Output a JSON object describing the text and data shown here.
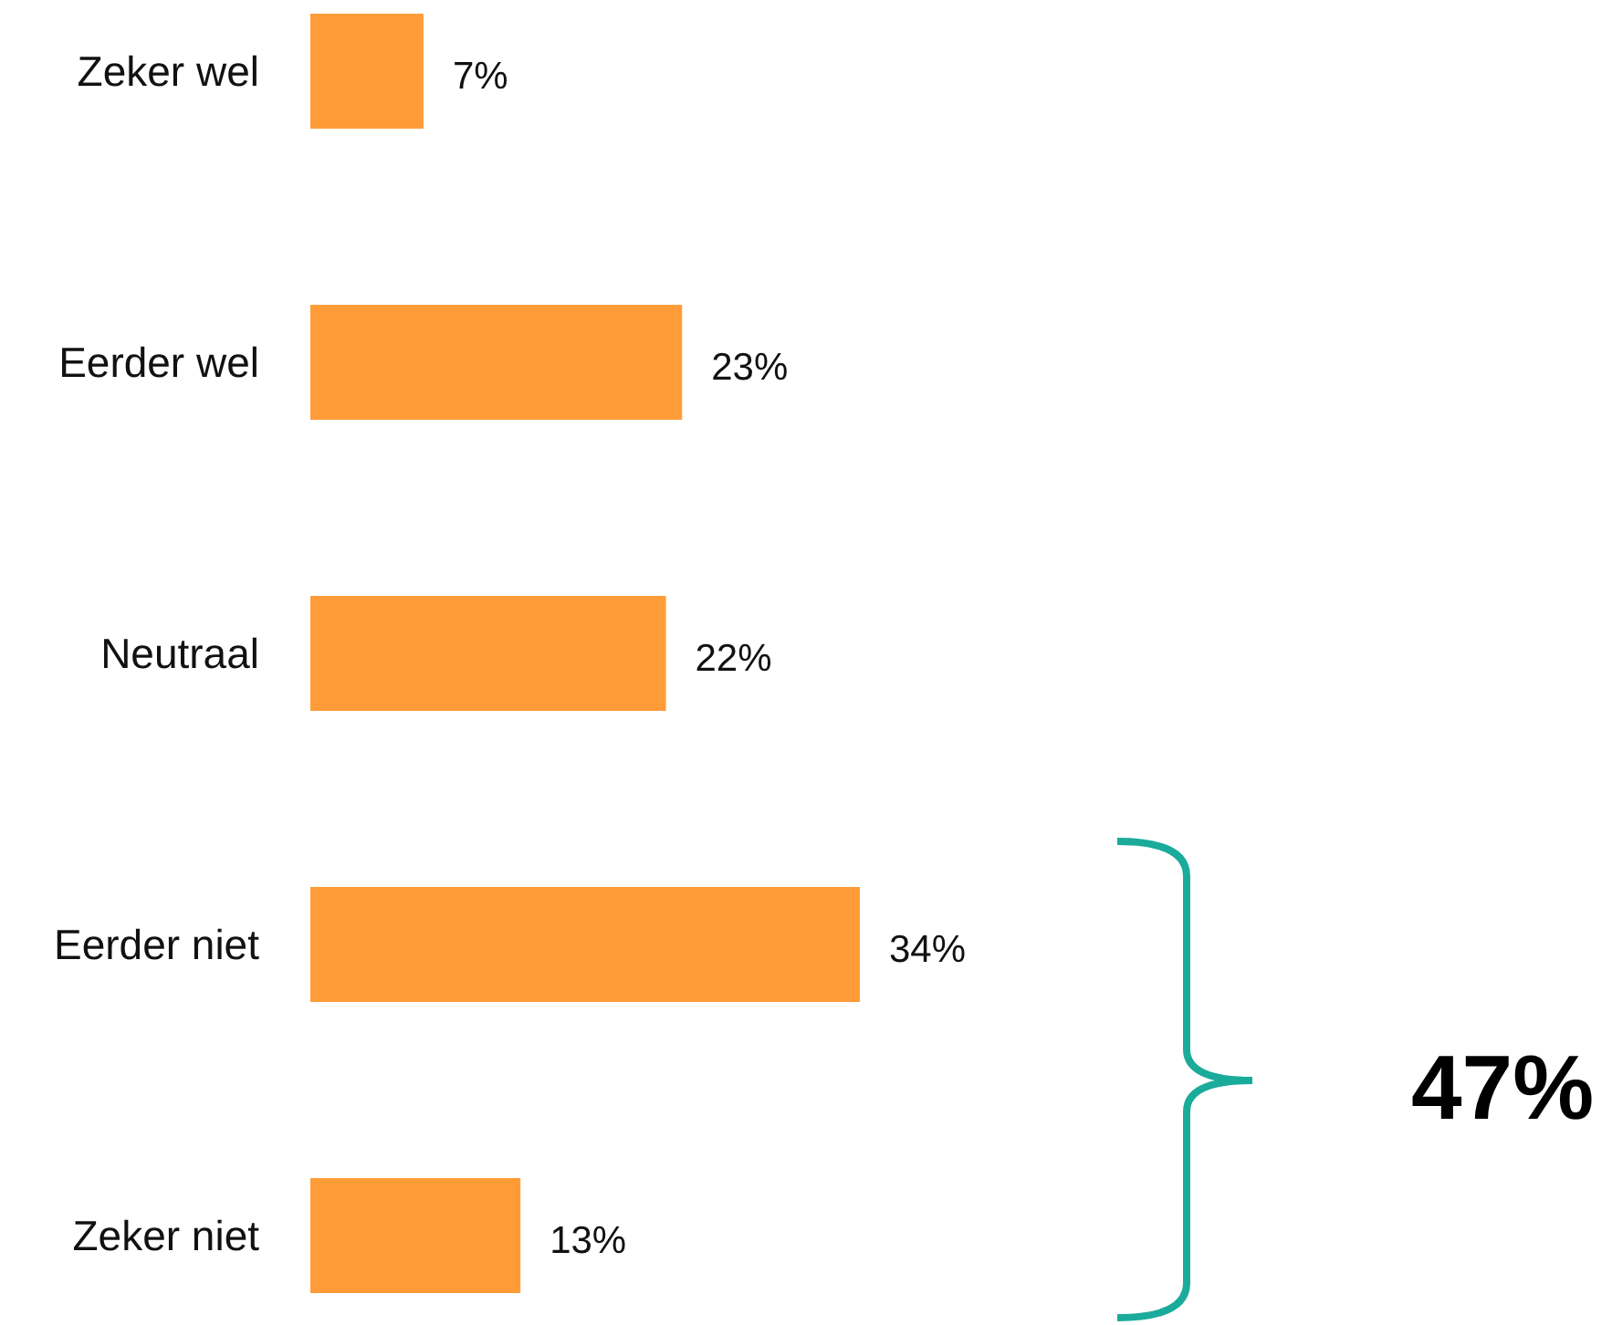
{
  "chart_data": {
    "type": "bar",
    "orientation": "horizontal",
    "categories": [
      "Zeker wel",
      "Eerder wel",
      "Neutraal",
      "Eerder niet",
      "Zeker niet"
    ],
    "values": [
      7,
      23,
      22,
      34,
      13
    ],
    "value_labels": [
      "7%",
      "23%",
      "22%",
      "34%",
      "13%"
    ],
    "color": "#ff9c38",
    "annotations": [
      "47%"
    ]
  }
}
